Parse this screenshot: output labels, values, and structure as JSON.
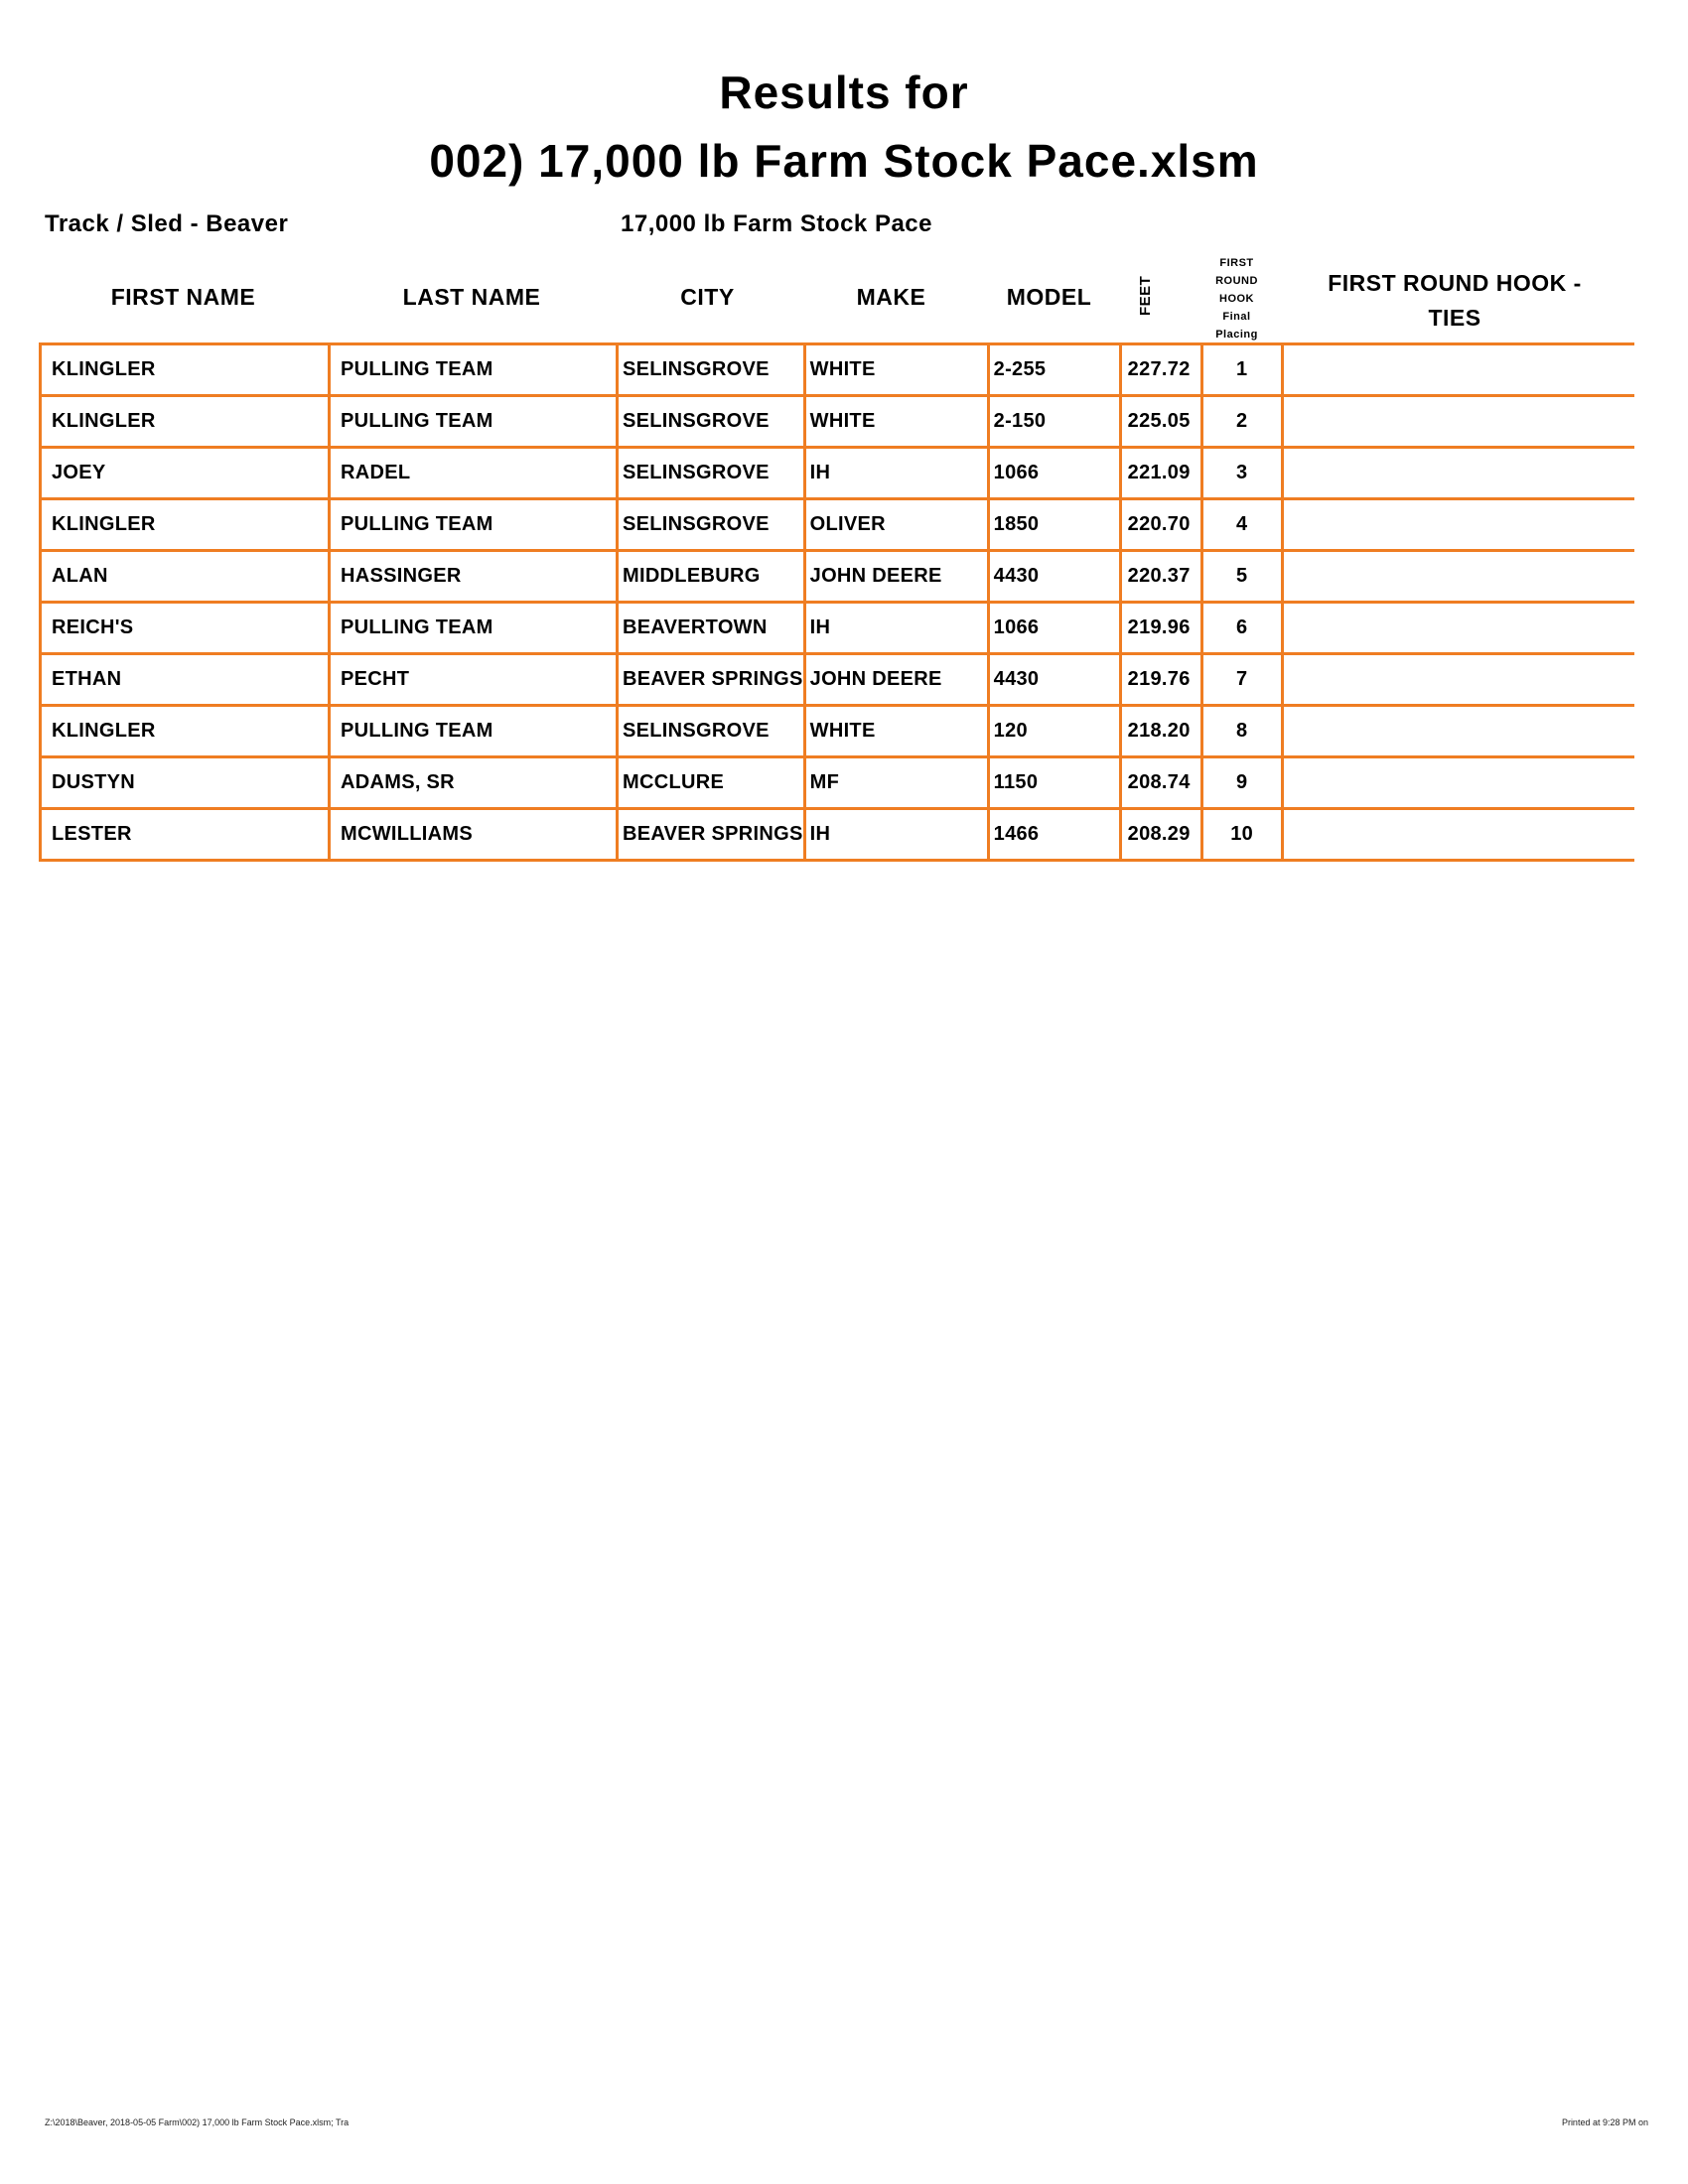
{
  "title_line1": "Results for",
  "title_line2": "002) 17,000 lb Farm Stock Pace.xlsm",
  "track_sled": "Track / Sled - Beaver",
  "class_name": "17,000 lb Farm Stock Pace",
  "accent_color": "#ef7d22",
  "columns": {
    "first_name": "FIRST NAME",
    "last_name": "LAST NAME",
    "city": "CITY",
    "make": "MAKE",
    "model": "MODEL",
    "feet": "FEET",
    "placing": [
      "FIRST",
      "ROUND",
      "HOOK",
      "Final",
      "Placing"
    ],
    "ties": "FIRST ROUND HOOK - TIES"
  },
  "rows": [
    {
      "first": "KLINGLER",
      "last": "PULLING TEAM",
      "city": "SELINSGROVE",
      "make": "WHITE",
      "model": "2-255",
      "feet": "227.72",
      "place": "1",
      "ties": ""
    },
    {
      "first": "KLINGLER",
      "last": "PULLING TEAM",
      "city": "SELINSGROVE",
      "make": "WHITE",
      "model": "2-150",
      "feet": "225.05",
      "place": "2",
      "ties": ""
    },
    {
      "first": "JOEY",
      "last": "RADEL",
      "city": "SELINSGROVE",
      "make": "IH",
      "model": "1066",
      "feet": "221.09",
      "place": "3",
      "ties": ""
    },
    {
      "first": "KLINGLER",
      "last": "PULLING TEAM",
      "city": "SELINSGROVE",
      "make": "OLIVER",
      "model": "1850",
      "feet": "220.70",
      "place": "4",
      "ties": ""
    },
    {
      "first": "ALAN",
      "last": "HASSINGER",
      "city": "MIDDLEBURG",
      "make": "JOHN DEERE",
      "model": "4430",
      "feet": "220.37",
      "place": "5",
      "ties": ""
    },
    {
      "first": "REICH'S",
      "last": "PULLING TEAM",
      "city": "BEAVERTOWN",
      "make": "IH",
      "model": "1066",
      "feet": "219.96",
      "place": "6",
      "ties": ""
    },
    {
      "first": "ETHAN",
      "last": "PECHT",
      "city": "BEAVER SPRINGS",
      "make": "JOHN DEERE",
      "model": "4430",
      "feet": "219.76",
      "place": "7",
      "ties": ""
    },
    {
      "first": "KLINGLER",
      "last": "PULLING TEAM",
      "city": "SELINSGROVE",
      "make": "WHITE",
      "model": "120",
      "feet": "218.20",
      "place": "8",
      "ties": ""
    },
    {
      "first": "DUSTYN",
      "last": "ADAMS, SR",
      "city": "MCCLURE",
      "make": "MF",
      "model": "1150",
      "feet": "208.74",
      "place": "9",
      "ties": ""
    },
    {
      "first": "LESTER",
      "last": "MCWILLIAMS",
      "city": "BEAVER SPRINGS",
      "make": "IH",
      "model": "1466",
      "feet": "208.29",
      "place": "10",
      "ties": ""
    }
  ],
  "footer": {
    "path": "Z:\\2018\\Beaver, 2018-05-05 Farm\\002) 17,000 lb Farm Stock Pace.xlsm; Tra",
    "printed": "Printed at 9:28 PM on"
  }
}
